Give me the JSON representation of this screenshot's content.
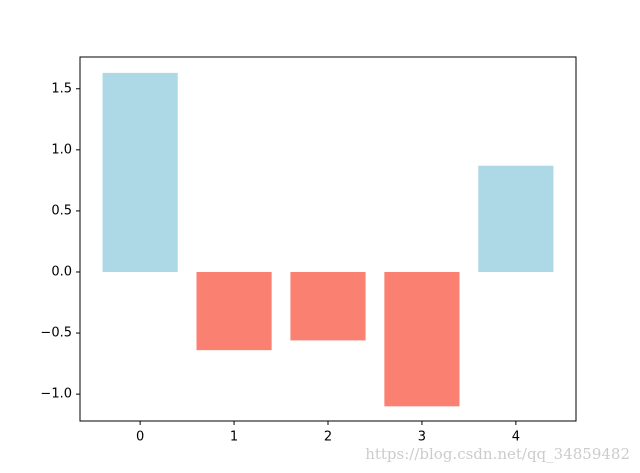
{
  "chart_data": {
    "type": "bar",
    "x": [
      0,
      1,
      2,
      3,
      4
    ],
    "values": [
      1.63,
      -0.64,
      -0.56,
      -1.1,
      0.87
    ],
    "colors": [
      "#add8e6",
      "#fa8072",
      "#fa8072",
      "#fa8072",
      "#add8e6"
    ],
    "xlim": [
      -0.64,
      4.64
    ],
    "xticks": [
      0,
      1,
      2,
      3,
      4
    ],
    "ylim": [
      -1.22,
      1.76
    ],
    "yticks": [
      {
        "value": -1.0,
        "label": "−1.0"
      },
      {
        "value": -0.5,
        "label": "−0.5"
      },
      {
        "value": 0.0,
        "label": "0.0"
      },
      {
        "value": 0.5,
        "label": "0.5"
      },
      {
        "value": 1.0,
        "label": "1.0"
      },
      {
        "value": 1.5,
        "label": "1.5"
      }
    ],
    "annotation": "https://blog.csdn.net/qq_34859482"
  }
}
